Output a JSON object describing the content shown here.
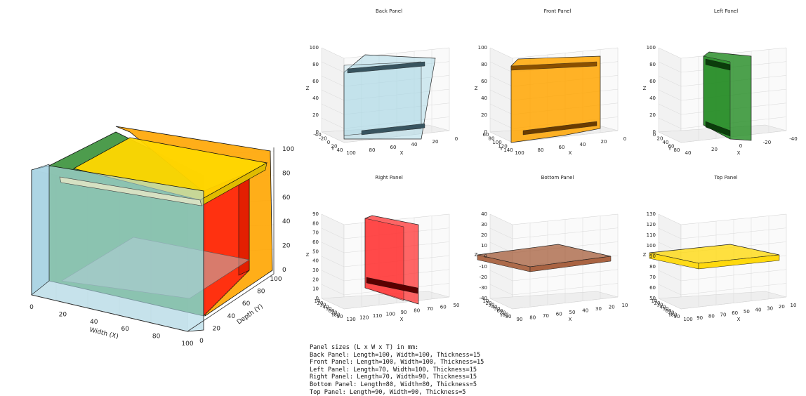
{
  "main_view": {
    "x_label": "Width (X)",
    "y_label": "Depth (Y)",
    "x_ticks": [
      "0",
      "20",
      "40",
      "60",
      "80",
      "100"
    ],
    "y_ticks": [
      "0",
      "20",
      "40",
      "60",
      "80",
      "100"
    ],
    "z_ticks": [
      "0",
      "20",
      "40",
      "60",
      "80",
      "100"
    ]
  },
  "subplots": [
    {
      "title": "Back Panel",
      "color": "#add8e6",
      "z_ticks": [
        "0",
        "20",
        "40",
        "60",
        "80",
        "100"
      ],
      "z_label": "Z",
      "y_ticks": [
        "-40",
        "-20",
        "0",
        "20",
        "40"
      ],
      "y_label": "Y",
      "x_ticks": [
        "100",
        "80",
        "60",
        "40",
        "20",
        "0"
      ],
      "x_label": "X"
    },
    {
      "title": "Front Panel",
      "color": "#ffa500",
      "z_ticks": [
        "0",
        "20",
        "40",
        "60",
        "80",
        "100"
      ],
      "z_label": "Z",
      "y_ticks": [
        "60",
        "80",
        "100",
        "120",
        "140"
      ],
      "y_label": "Y",
      "x_ticks": [
        "100",
        "80",
        "60",
        "40",
        "20",
        "0"
      ],
      "x_label": "X"
    },
    {
      "title": "Left Panel",
      "color": "#228b22",
      "z_ticks": [
        "0",
        "20",
        "40",
        "60",
        "80",
        "100"
      ],
      "z_label": "Z",
      "y_ticks": [
        "0",
        "20",
        "40",
        "60",
        "80"
      ],
      "y_label": "Y",
      "x_ticks": [
        "40",
        "20",
        "0",
        "-20",
        "-40"
      ],
      "x_label": "X"
    },
    {
      "title": "Right Panel",
      "color": "#ff3333",
      "z_ticks": [
        "0",
        "10",
        "20",
        "30",
        "40",
        "50",
        "60",
        "70",
        "80",
        "90"
      ],
      "z_label": "Z",
      "y_ticks": [
        "10",
        "20",
        "30",
        "40",
        "50",
        "60",
        "70",
        "80",
        "90"
      ],
      "y_label": "Y",
      "x_ticks": [
        "130",
        "120",
        "110",
        "100",
        "90",
        "80",
        "70",
        "60",
        "50"
      ],
      "x_label": "X"
    },
    {
      "title": "Bottom Panel",
      "color": "#a0522d",
      "z_ticks": [
        "-40",
        "-30",
        "-20",
        "-10",
        "0",
        "10",
        "20",
        "30",
        "40"
      ],
      "z_label": "Z",
      "y_ticks": [
        "10",
        "20",
        "30",
        "40",
        "50",
        "60",
        "70",
        "80",
        "90"
      ],
      "y_label": "Y",
      "x_ticks": [
        "90",
        "80",
        "70",
        "60",
        "50",
        "40",
        "30",
        "20",
        "10"
      ],
      "x_label": "X"
    },
    {
      "title": "Top Panel",
      "color": "#ffd700",
      "z_ticks": [
        "50",
        "60",
        "70",
        "80",
        "90",
        "100",
        "110",
        "120",
        "130"
      ],
      "z_label": "Z",
      "y_ticks": [
        "10",
        "20",
        "30",
        "40",
        "50",
        "60",
        "70",
        "80",
        "90"
      ],
      "y_label": "Y",
      "x_ticks": [
        "100",
        "90",
        "80",
        "70",
        "60",
        "50",
        "40",
        "30",
        "20",
        "10"
      ],
      "x_label": "X"
    }
  ],
  "panel_sizes": {
    "heading": "Panel sizes (L x W x T) in mm:",
    "lines": [
      "Back Panel: Length=100, Width=100, Thickness=15",
      "Front Panel: Length=100, Width=100, Thickness=15",
      "Left Panel: Length=70, Width=100, Thickness=15",
      "Right Panel: Length=70, Width=90, Thickness=15",
      "Bottom Panel: Length=80, Width=80, Thickness=5",
      "Top Panel: Length=90, Width=90, Thickness=5"
    ]
  }
}
